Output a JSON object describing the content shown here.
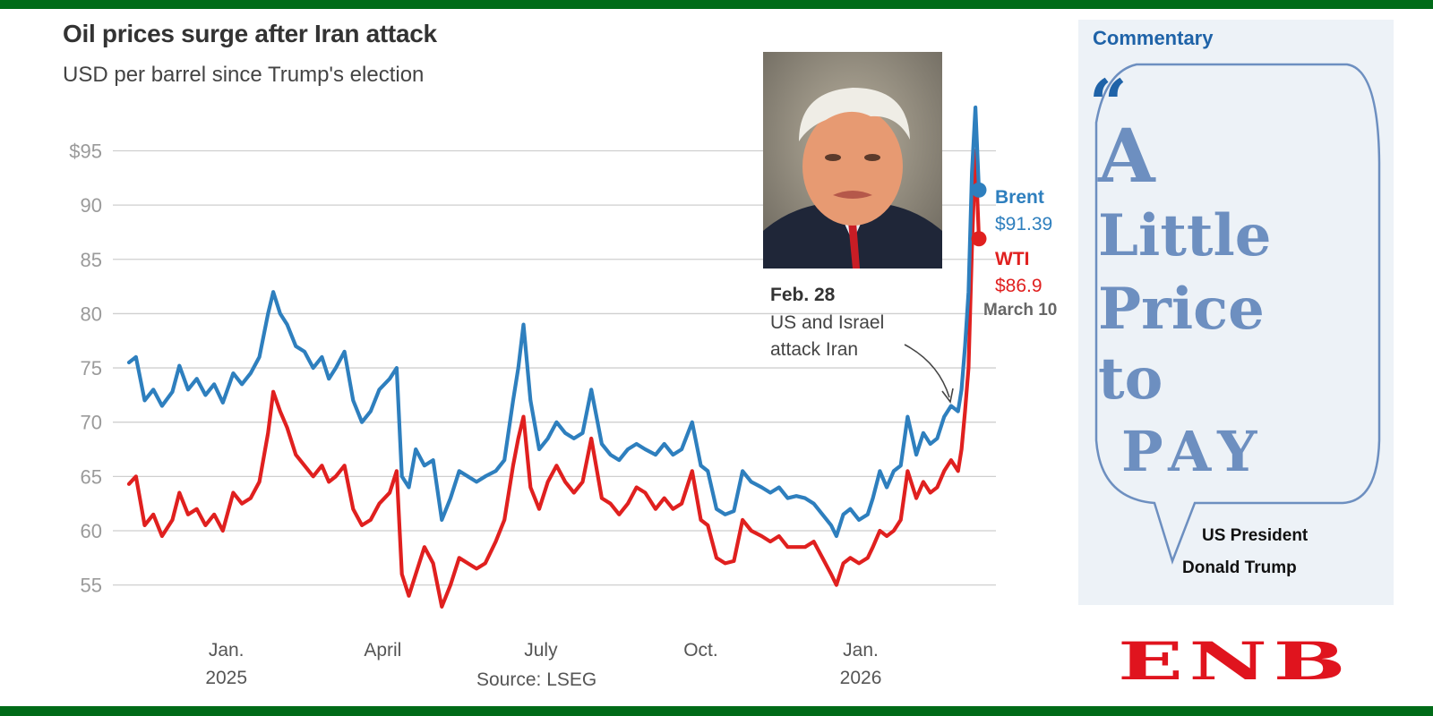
{
  "chart_data": {
    "type": "line",
    "title": "Oil prices surge after Iran attack",
    "subtitle": "USD per barrel since Trump's election",
    "source": "Source: LSEG",
    "ylim": [
      52,
      99
    ],
    "y_ticks": [
      55,
      60,
      65,
      70,
      75,
      80,
      85,
      90,
      95
    ],
    "y_tick_labels": [
      "55",
      "60",
      "65",
      "70",
      "75",
      "80",
      "85",
      "90",
      "$95"
    ],
    "x_range": [
      "2024-11-06",
      "2026-03-10"
    ],
    "x_ticks": [
      {
        "date": "2025-01-01",
        "label": "Jan.",
        "sublabel": "2025"
      },
      {
        "date": "2025-04-01",
        "label": "April",
        "sublabel": ""
      },
      {
        "date": "2025-07-01",
        "label": "July",
        "sublabel": ""
      },
      {
        "date": "2025-10-01",
        "label": "Oct.",
        "sublabel": ""
      },
      {
        "date": "2026-01-01",
        "label": "Jan.",
        "sublabel": "2026"
      }
    ],
    "series": [
      {
        "name": "Brent",
        "color": "#2e7fbe",
        "end_value": "$91.39",
        "points": [
          [
            "2024-11-06",
            75.5
          ],
          [
            "2024-11-10",
            76
          ],
          [
            "2024-11-15",
            72
          ],
          [
            "2024-11-20",
            73
          ],
          [
            "2024-11-25",
            71.5
          ],
          [
            "2024-12-01",
            72.8
          ],
          [
            "2024-12-05",
            75.2
          ],
          [
            "2024-12-10",
            73
          ],
          [
            "2024-12-15",
            74
          ],
          [
            "2024-12-20",
            72.5
          ],
          [
            "2024-12-25",
            73.5
          ],
          [
            "2024-12-30",
            71.8
          ],
          [
            "2025-01-05",
            74.5
          ],
          [
            "2025-01-10",
            73.5
          ],
          [
            "2025-01-15",
            74.5
          ],
          [
            "2025-01-20",
            76
          ],
          [
            "2025-01-25",
            80
          ],
          [
            "2025-01-28",
            82
          ],
          [
            "2025-02-01",
            80
          ],
          [
            "2025-02-05",
            79
          ],
          [
            "2025-02-10",
            77
          ],
          [
            "2025-02-15",
            76.5
          ],
          [
            "2025-02-20",
            75
          ],
          [
            "2025-02-25",
            76
          ],
          [
            "2025-03-01",
            74
          ],
          [
            "2025-03-05",
            75
          ],
          [
            "2025-03-10",
            76.5
          ],
          [
            "2025-03-15",
            72
          ],
          [
            "2025-03-20",
            70
          ],
          [
            "2025-03-25",
            71
          ],
          [
            "2025-03-30",
            73
          ],
          [
            "2025-04-05",
            74
          ],
          [
            "2025-04-09",
            75
          ],
          [
            "2025-04-12",
            65
          ],
          [
            "2025-04-16",
            64
          ],
          [
            "2025-04-20",
            67.5
          ],
          [
            "2025-04-25",
            66
          ],
          [
            "2025-04-30",
            66.5
          ],
          [
            "2025-05-05",
            61
          ],
          [
            "2025-05-10",
            63
          ],
          [
            "2025-05-15",
            65.5
          ],
          [
            "2025-05-20",
            65
          ],
          [
            "2025-05-25",
            64.5
          ],
          [
            "2025-05-30",
            65
          ],
          [
            "2025-06-05",
            65.5
          ],
          [
            "2025-06-10",
            66.5
          ],
          [
            "2025-06-15",
            72
          ],
          [
            "2025-06-18",
            75
          ],
          [
            "2025-06-21",
            79
          ],
          [
            "2025-06-25",
            72
          ],
          [
            "2025-06-30",
            67.5
          ],
          [
            "2025-07-05",
            68.5
          ],
          [
            "2025-07-10",
            70
          ],
          [
            "2025-07-15",
            69
          ],
          [
            "2025-07-20",
            68.5
          ],
          [
            "2025-07-25",
            69
          ],
          [
            "2025-07-30",
            73
          ],
          [
            "2025-08-05",
            68
          ],
          [
            "2025-08-10",
            67
          ],
          [
            "2025-08-15",
            66.5
          ],
          [
            "2025-08-20",
            67.5
          ],
          [
            "2025-08-25",
            68
          ],
          [
            "2025-08-30",
            67.5
          ],
          [
            "2025-09-05",
            67
          ],
          [
            "2025-09-10",
            68
          ],
          [
            "2025-09-15",
            67
          ],
          [
            "2025-09-20",
            67.5
          ],
          [
            "2025-09-26",
            70
          ],
          [
            "2025-10-01",
            66
          ],
          [
            "2025-10-05",
            65.5
          ],
          [
            "2025-10-10",
            62
          ],
          [
            "2025-10-15",
            61.5
          ],
          [
            "2025-10-20",
            61.8
          ],
          [
            "2025-10-25",
            65.5
          ],
          [
            "2025-10-30",
            64.5
          ],
          [
            "2025-11-05",
            64
          ],
          [
            "2025-11-10",
            63.5
          ],
          [
            "2025-11-15",
            64
          ],
          [
            "2025-11-20",
            63
          ],
          [
            "2025-11-25",
            63.2
          ],
          [
            "2025-11-30",
            63
          ],
          [
            "2025-12-05",
            62.5
          ],
          [
            "2025-12-10",
            61.5
          ],
          [
            "2025-12-15",
            60.5
          ],
          [
            "2025-12-18",
            59.5
          ],
          [
            "2025-12-22",
            61.5
          ],
          [
            "2025-12-26",
            62
          ],
          [
            "2025-12-31",
            61
          ],
          [
            "2026-01-05",
            61.5
          ],
          [
            "2026-01-08",
            63
          ],
          [
            "2026-01-12",
            65.5
          ],
          [
            "2026-01-16",
            64
          ],
          [
            "2026-01-20",
            65.5
          ],
          [
            "2026-01-24",
            66
          ],
          [
            "2026-01-28",
            70.5
          ],
          [
            "2026-02-02",
            67
          ],
          [
            "2026-02-06",
            69
          ],
          [
            "2026-02-10",
            68
          ],
          [
            "2026-02-14",
            68.5
          ],
          [
            "2026-02-18",
            70.5
          ],
          [
            "2026-02-22",
            71.5
          ],
          [
            "2026-02-26",
            71
          ],
          [
            "2026-02-28",
            73
          ],
          [
            "2026-03-02",
            77
          ],
          [
            "2026-03-04",
            82
          ],
          [
            "2026-03-06",
            93
          ],
          [
            "2026-03-08",
            99
          ],
          [
            "2026-03-10",
            91.39
          ]
        ]
      },
      {
        "name": "WTI",
        "color": "#e0201f",
        "end_value": "$86.9",
        "points": [
          [
            "2024-11-06",
            64.3
          ],
          [
            "2024-11-10",
            65
          ],
          [
            "2024-11-15",
            60.5
          ],
          [
            "2024-11-20",
            61.5
          ],
          [
            "2024-11-25",
            59.5
          ],
          [
            "2024-12-01",
            61
          ],
          [
            "2024-12-05",
            63.5
          ],
          [
            "2024-12-10",
            61.5
          ],
          [
            "2024-12-15",
            62
          ],
          [
            "2024-12-20",
            60.5
          ],
          [
            "2024-12-25",
            61.5
          ],
          [
            "2024-12-30",
            60
          ],
          [
            "2025-01-05",
            63.5
          ],
          [
            "2025-01-10",
            62.5
          ],
          [
            "2025-01-15",
            63
          ],
          [
            "2025-01-20",
            64.5
          ],
          [
            "2025-01-25",
            69
          ],
          [
            "2025-01-28",
            72.8
          ],
          [
            "2025-02-01",
            71
          ],
          [
            "2025-02-05",
            69.5
          ],
          [
            "2025-02-10",
            67
          ],
          [
            "2025-02-15",
            66
          ],
          [
            "2025-02-20",
            65
          ],
          [
            "2025-02-25",
            66
          ],
          [
            "2025-03-01",
            64.5
          ],
          [
            "2025-03-05",
            65
          ],
          [
            "2025-03-10",
            66
          ],
          [
            "2025-03-15",
            62
          ],
          [
            "2025-03-20",
            60.5
          ],
          [
            "2025-03-25",
            61
          ],
          [
            "2025-03-30",
            62.5
          ],
          [
            "2025-04-05",
            63.5
          ],
          [
            "2025-04-09",
            65.5
          ],
          [
            "2025-04-12",
            56
          ],
          [
            "2025-04-16",
            54
          ],
          [
            "2025-04-20",
            56
          ],
          [
            "2025-04-25",
            58.5
          ],
          [
            "2025-04-30",
            57
          ],
          [
            "2025-05-05",
            53
          ],
          [
            "2025-05-10",
            55
          ],
          [
            "2025-05-15",
            57.5
          ],
          [
            "2025-05-20",
            57
          ],
          [
            "2025-05-25",
            56.5
          ],
          [
            "2025-05-30",
            57
          ],
          [
            "2025-06-05",
            59
          ],
          [
            "2025-06-10",
            61
          ],
          [
            "2025-06-15",
            66
          ],
          [
            "2025-06-18",
            68.5
          ],
          [
            "2025-06-21",
            70.5
          ],
          [
            "2025-06-25",
            64
          ],
          [
            "2025-06-30",
            62
          ],
          [
            "2025-07-05",
            64.5
          ],
          [
            "2025-07-10",
            66
          ],
          [
            "2025-07-15",
            64.5
          ],
          [
            "2025-07-20",
            63.5
          ],
          [
            "2025-07-25",
            64.5
          ],
          [
            "2025-07-30",
            68.5
          ],
          [
            "2025-08-05",
            63
          ],
          [
            "2025-08-10",
            62.5
          ],
          [
            "2025-08-15",
            61.5
          ],
          [
            "2025-08-20",
            62.5
          ],
          [
            "2025-08-25",
            64
          ],
          [
            "2025-08-30",
            63.5
          ],
          [
            "2025-09-05",
            62
          ],
          [
            "2025-09-10",
            63
          ],
          [
            "2025-09-15",
            62
          ],
          [
            "2025-09-20",
            62.5
          ],
          [
            "2025-09-26",
            65.5
          ],
          [
            "2025-10-01",
            61
          ],
          [
            "2025-10-05",
            60.5
          ],
          [
            "2025-10-10",
            57.5
          ],
          [
            "2025-10-15",
            57
          ],
          [
            "2025-10-20",
            57.2
          ],
          [
            "2025-10-25",
            61
          ],
          [
            "2025-10-30",
            60
          ],
          [
            "2025-11-05",
            59.5
          ],
          [
            "2025-11-10",
            59
          ],
          [
            "2025-11-15",
            59.5
          ],
          [
            "2025-11-20",
            58.5
          ],
          [
            "2025-11-25",
            58.5
          ],
          [
            "2025-11-30",
            58.5
          ],
          [
            "2025-12-05",
            59
          ],
          [
            "2025-12-10",
            57.5
          ],
          [
            "2025-12-15",
            56
          ],
          [
            "2025-12-18",
            55
          ],
          [
            "2025-12-22",
            57
          ],
          [
            "2025-12-26",
            57.5
          ],
          [
            "2025-12-31",
            57
          ],
          [
            "2026-01-05",
            57.5
          ],
          [
            "2026-01-08",
            58.5
          ],
          [
            "2026-01-12",
            60
          ],
          [
            "2026-01-16",
            59.5
          ],
          [
            "2026-01-20",
            60
          ],
          [
            "2026-01-24",
            61
          ],
          [
            "2026-01-28",
            65.5
          ],
          [
            "2026-02-02",
            63
          ],
          [
            "2026-02-06",
            64.5
          ],
          [
            "2026-02-10",
            63.5
          ],
          [
            "2026-02-14",
            64
          ],
          [
            "2026-02-18",
            65.5
          ],
          [
            "2026-02-22",
            66.5
          ],
          [
            "2026-02-26",
            65.5
          ],
          [
            "2026-02-28",
            67.5
          ],
          [
            "2026-03-02",
            71
          ],
          [
            "2026-03-04",
            75
          ],
          [
            "2026-03-06",
            86
          ],
          [
            "2026-03-08",
            95
          ],
          [
            "2026-03-10",
            86.9
          ]
        ]
      }
    ],
    "annotation": {
      "date": "2026-02-28",
      "title": "Feb. 28",
      "lines": [
        "US and Israel",
        "attack Iran"
      ]
    },
    "end_date_label": "March 10"
  },
  "commentary": {
    "heading": "Commentary",
    "quote_mark": "“",
    "quote_lines": [
      "A",
      "Little",
      "Price",
      "to",
      "PAY"
    ],
    "attribution_line1": "US President",
    "attribution_line2": "Donald Trump"
  },
  "logo": "ENB",
  "colors": {
    "brand_green": "#006b18",
    "logo_red": "#e0141e",
    "brent": "#2e7fbe",
    "wti": "#e0201f"
  }
}
